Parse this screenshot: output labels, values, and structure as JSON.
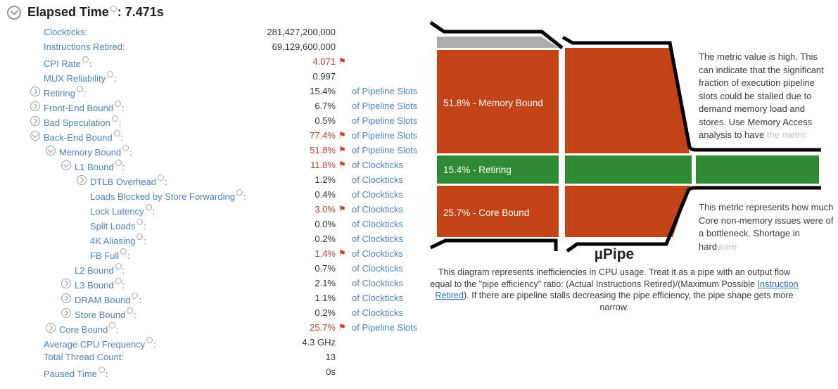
{
  "header": {
    "title": "Elapsed Time",
    "value": ": 7.471s"
  },
  "metrics": {
    "rows": [
      {
        "level": 1,
        "icon": null,
        "label": "Clockticks",
        "help": false,
        "value": "281,427,200,000",
        "flag": false,
        "red": false,
        "unit": null
      },
      {
        "level": 1,
        "icon": null,
        "label": "Instructions Retired",
        "help": false,
        "value": "69,129,600,000",
        "flag": false,
        "red": false,
        "unit": null
      },
      {
        "level": 1,
        "icon": null,
        "label": "CPI Rate",
        "help": true,
        "value": "4.071",
        "flag": true,
        "red": true,
        "unit": null
      },
      {
        "level": 1,
        "icon": null,
        "label": "MUX Reliability",
        "help": true,
        "value": "0.997",
        "flag": false,
        "red": false,
        "unit": null
      },
      {
        "level": 1,
        "icon": "collapsed",
        "label": "Retiring",
        "help": true,
        "value": "15.4%",
        "flag": false,
        "red": false,
        "unit": "of Pipeline Slots"
      },
      {
        "level": 1,
        "icon": "collapsed",
        "label": "Front-End Bound",
        "help": true,
        "value": "6.7%",
        "flag": false,
        "red": false,
        "unit": "of Pipeline Slots"
      },
      {
        "level": 1,
        "icon": "collapsed",
        "label": "Bad Speculation",
        "help": true,
        "value": "0.5%",
        "flag": false,
        "red": false,
        "unit": "of Pipeline Slots"
      },
      {
        "level": 1,
        "icon": "expanded",
        "label": "Back-End Bound",
        "help": true,
        "value": "77.4%",
        "flag": true,
        "red": true,
        "unit": "of Pipeline Slots"
      },
      {
        "level": 2,
        "icon": "expanded",
        "label": "Memory Bound",
        "help": true,
        "value": "51.8%",
        "flag": true,
        "red": true,
        "unit": "of Pipeline Slots"
      },
      {
        "level": 3,
        "icon": "expanded",
        "label": "L1 Bound",
        "help": true,
        "value": "11.8%",
        "flag": true,
        "red": true,
        "unit": "of Clockticks"
      },
      {
        "level": 4,
        "icon": "collapsed",
        "label": "DTLB Overhead",
        "help": true,
        "value": "1.2%",
        "flag": false,
        "red": false,
        "unit": "of Clockticks"
      },
      {
        "level": 4,
        "icon": null,
        "label": "Loads Blocked by Store Forwarding",
        "help": true,
        "value": "0.4%",
        "flag": false,
        "red": false,
        "unit": "of Clockticks"
      },
      {
        "level": 4,
        "icon": null,
        "label": "Lock Latency",
        "help": true,
        "value": "3.0%",
        "flag": true,
        "red": true,
        "unit": "of Clockticks"
      },
      {
        "level": 4,
        "icon": null,
        "label": "Split Loads",
        "help": true,
        "value": "0.0%",
        "flag": false,
        "red": false,
        "unit": "of Clockticks"
      },
      {
        "level": 4,
        "icon": null,
        "label": "4K Aliasing",
        "help": true,
        "value": "0.2%",
        "flag": false,
        "red": false,
        "unit": "of Clockticks"
      },
      {
        "level": 4,
        "icon": null,
        "label": "FB Full",
        "help": true,
        "value": "1.4%",
        "flag": true,
        "red": true,
        "unit": "of Clockticks"
      },
      {
        "level": 3,
        "icon": null,
        "label": "L2 Bound",
        "help": true,
        "value": "0.7%",
        "flag": false,
        "red": false,
        "unit": "of Clockticks"
      },
      {
        "level": 3,
        "icon": "collapsed",
        "label": "L3 Bound",
        "help": true,
        "value": "2.1%",
        "flag": false,
        "red": false,
        "unit": "of Clockticks"
      },
      {
        "level": 3,
        "icon": "collapsed",
        "label": "DRAM Bound",
        "help": true,
        "value": "1.1%",
        "flag": false,
        "red": false,
        "unit": "of Clockticks"
      },
      {
        "level": 3,
        "icon": "collapsed",
        "label": "Store Bound",
        "help": true,
        "value": "0.2%",
        "flag": false,
        "red": false,
        "unit": "of Clockticks"
      },
      {
        "level": 2,
        "icon": "collapsed",
        "label": "Core Bound",
        "help": true,
        "value": "25.7%",
        "flag": true,
        "red": true,
        "unit": "of Pipeline Slots"
      },
      {
        "level": 1,
        "icon": null,
        "label": "Average CPU Frequency",
        "help": true,
        "value": "4.3 GHz",
        "flag": false,
        "red": false,
        "unit": null
      },
      {
        "level": 1,
        "icon": null,
        "label": "Total Thread Count",
        "help": false,
        "value": "13",
        "flag": false,
        "red": false,
        "unit": null
      },
      {
        "level": 1,
        "icon": null,
        "label": "Paused Time",
        "help": true,
        "value": "0s",
        "flag": false,
        "red": false,
        "unit": null
      }
    ]
  },
  "pipe": {
    "title": "µPipe",
    "segments": [
      {
        "pct": "51.8%",
        "name": "Memory Bound",
        "label": "51.8% - Memory Bound"
      },
      {
        "pct": "15.4%",
        "name": "Retiring",
        "label": "15.4% - Retiring"
      },
      {
        "pct": "25.7%",
        "name": "Core Bound",
        "label": "25.7% - Core Bound"
      }
    ],
    "tooltips": [
      {
        "text": "The metric value is high. This can indicate that the significant fraction of execution pipeline slots could be stalled due to demand memory load and stores. Use Memory Access analysis to have ",
        "fade": "the metric"
      },
      {
        "text": "This metric represents how much Core non-memory issues were of a bottleneck. Shortage in hard",
        "fade": "ware"
      }
    ],
    "caption": {
      "before": "This diagram represents inefficiencies in CPU usage. Treat it as a pipe with an output flow equal to the \"pipe efficiency\" ratio: (Actual Instructions Retired)/(Maximum Possible ",
      "link": "Instruction Retired",
      "after": "). If there are pipeline stalls decreasing the pipe efficiency, the pipe shape gets more narrow."
    }
  },
  "colors": {
    "bound_red": "#c34318",
    "retiring_green": "#2e8b34",
    "other_gray": "#ababab",
    "flag_red": "#d43d20",
    "flagged_value_red": "#b5442b",
    "label_blue": "#4d82c2"
  }
}
